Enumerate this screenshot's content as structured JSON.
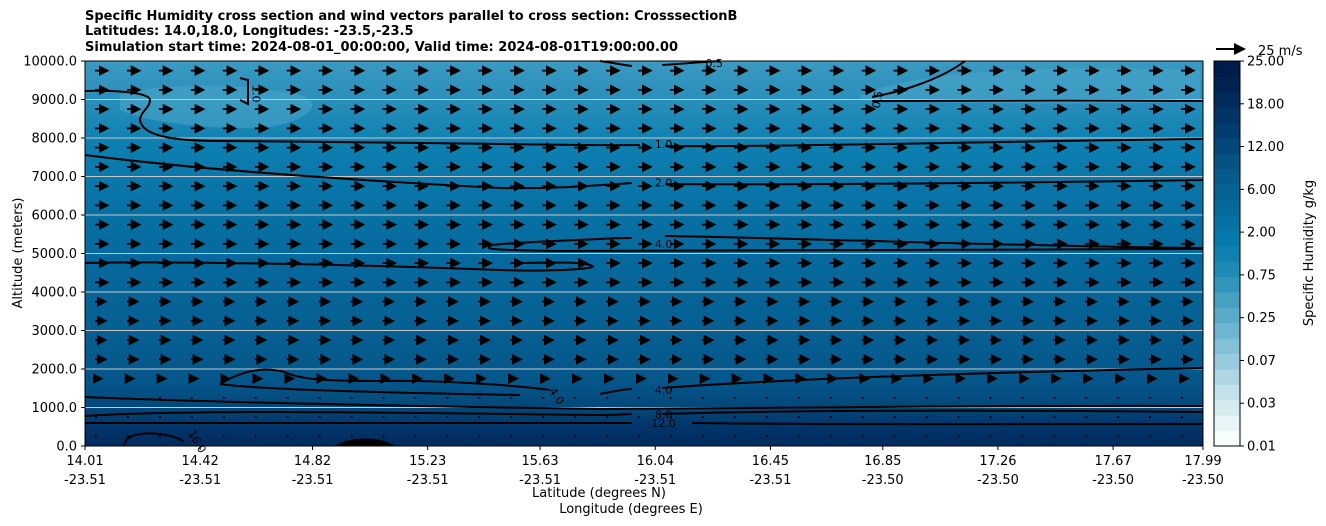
{
  "title_lines": [
    "Specific Humidity cross section and wind vectors parallel to cross section: CrosssectionB",
    "Latitudes: 14.0,18.0, Longitudes: -23.5,-23.5",
    "Simulation start time: 2024-08-01_00:00:00, Valid time: 2024-08-01T19:00:00.00"
  ],
  "chart_data": {
    "type": "contour cross-section with wind vectors",
    "title": "Specific Humidity cross section and wind vectors parallel to cross section: CrosssectionB",
    "xlabel_lat": "Latitude (degrees N)",
    "xlabel_lon": "Longitude (degrees E)",
    "ylabel": "Altitude (meters)",
    "ylim": [
      0,
      10000
    ],
    "yticks": [
      "0.0",
      "1000.0",
      "2000.0",
      "3000.0",
      "4000.0",
      "5000.0",
      "6000.0",
      "7000.0",
      "8000.0",
      "9000.0",
      "10000.0"
    ],
    "xticks": [
      {
        "lat": "14.01",
        "lon": "-23.51"
      },
      {
        "lat": "14.42",
        "lon": "-23.51"
      },
      {
        "lat": "14.82",
        "lon": "-23.51"
      },
      {
        "lat": "15.23",
        "lon": "-23.51"
      },
      {
        "lat": "15.63",
        "lon": "-23.51"
      },
      {
        "lat": "16.04",
        "lon": "-23.51"
      },
      {
        "lat": "16.45",
        "lon": "-23.51"
      },
      {
        "lat": "16.85",
        "lon": "-23.50"
      },
      {
        "lat": "17.26",
        "lon": "-23.50"
      },
      {
        "lat": "17.67",
        "lon": "-23.50"
      },
      {
        "lat": "17.99",
        "lon": "-23.50"
      }
    ],
    "grid": true,
    "colorbar": {
      "label": "Specific Humidity g/kg",
      "ticks": [
        "0.01",
        "0.03",
        "0.07",
        "0.25",
        "0.75",
        "2.00",
        "6.00",
        "12.00",
        "18.00",
        "25.00"
      ],
      "colors": [
        "#f7fcfd",
        "#e9f4f7",
        "#d6ebf0",
        "#c2e1ea",
        "#aed6e3",
        "#9acbdc",
        "#84c0d6",
        "#6fb5cf",
        "#5aaac9",
        "#46a0c2",
        "#3195bc",
        "#1e8ab6",
        "#0f80b0",
        "#0879ab",
        "#0672a4",
        "#05699b",
        "#056293",
        "#065b8c",
        "#075183",
        "#05477a",
        "#033d70",
        "#033466",
        "#022b5c",
        "#012352",
        "#001c48"
      ]
    },
    "quiver_key": "25 m/s",
    "contour_labels": [
      {
        "text": "0.5",
        "alt": 9950,
        "lat": 16.25
      },
      {
        "text": "0.5",
        "alt": 9000,
        "lat": 16.83
      },
      {
        "text": "1.0",
        "alt": 9150,
        "lat": 14.62
      },
      {
        "text": "1.0",
        "alt": 7850,
        "lat": 16.07
      },
      {
        "text": "2.0",
        "alt": 6850,
        "lat": 16.07
      },
      {
        "text": "4.0",
        "alt": 5250,
        "lat": 16.07
      },
      {
        "text": "4.0",
        "alt": 1450,
        "lat": 16.07
      },
      {
        "text": "4.0",
        "alt": 1300,
        "lat": 15.69
      },
      {
        "text": "8.0",
        "alt": 820,
        "lat": 16.07
      },
      {
        "text": "12.0",
        "alt": 600,
        "lat": 16.07
      },
      {
        "text": "16.0",
        "alt": 120,
        "lat": 14.41
      }
    ]
  }
}
